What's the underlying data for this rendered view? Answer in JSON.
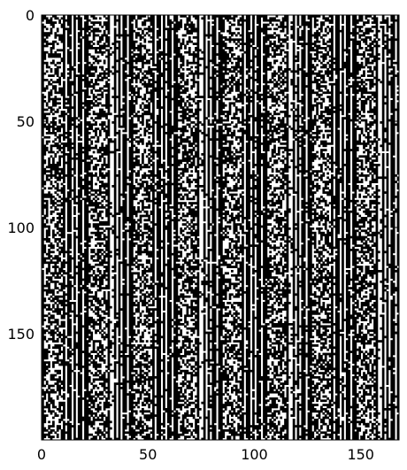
{
  "chart_data": {
    "type": "heatmap",
    "title": "",
    "xlabel": "",
    "ylabel": "",
    "n_cols": 168,
    "n_rows": 200,
    "xlim": [
      0,
      168
    ],
    "ylim": [
      200,
      0
    ],
    "x_ticks": [
      0,
      50,
      100,
      150
    ],
    "y_ticks": [
      0,
      50,
      100,
      150
    ],
    "x_tick_labels": [
      "0",
      "50",
      "100",
      "150"
    ],
    "y_tick_labels": [
      "0",
      "50",
      "100",
      "150"
    ],
    "colormap": {
      "0": "#ffffff",
      "1": "#000000"
    },
    "grid": false,
    "pattern": {
      "description": "binary image; column pattern repeats every 21 cells horizontally",
      "period": 21,
      "blocks": 8,
      "col_class_in_period": [
        1,
        "n",
        "n",
        "n",
        "n",
        "n",
        "n",
        "n",
        "n",
        "n",
        1,
        0,
        1,
        1,
        0,
        1,
        0,
        1,
        1,
        0,
        1
      ]
    }
  }
}
